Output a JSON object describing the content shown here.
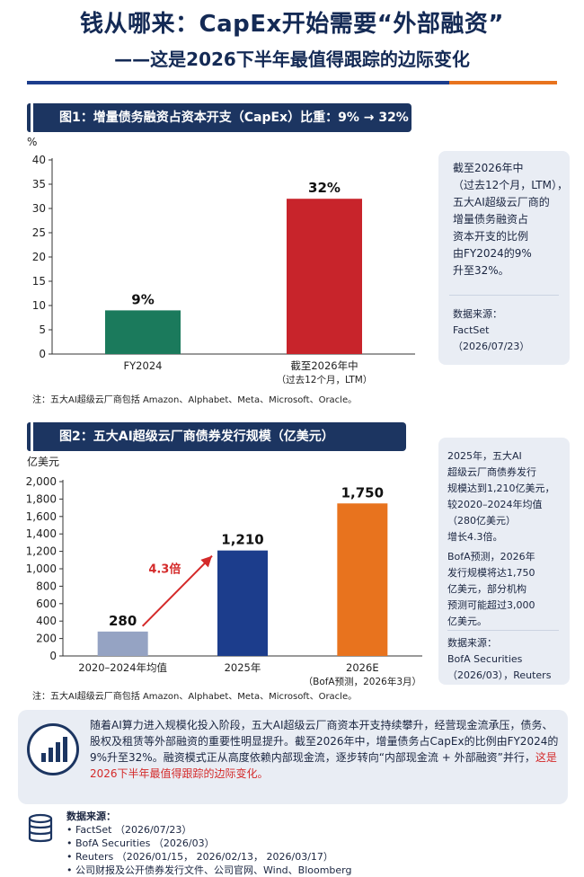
{
  "header": {
    "title": "钱从哪来：CapEx开始需要“外部融资”",
    "subtitle": "——这是2026下半年最值得跟踪的边际变化"
  },
  "figure1": {
    "banner": "图1：增量债务融资占资本开支（CapEx）比重：9% → 32%",
    "unit_label": "%",
    "yticks": [
      "0",
      "5",
      "10",
      "15",
      "20",
      "25",
      "30",
      "35",
      "40"
    ],
    "note": "注：五大AI超级云厂商包括 Amazon、Alphabet、Meta、Microsoft、Oracle。",
    "side_text": "截至2026年中\n（过去12个月，LTM），\n五大AI超级云厂商的\n增量债务融资占\n资本开支的比例\n由FY2024的9%\n升至32%。",
    "side_source": "数据来源：\nFactSet\n（2026/07/23）"
  },
  "figure2": {
    "banner": "图2：五大AI超级云厂商债券发行规模（亿美元）",
    "unit_label": "亿美元",
    "yticks": [
      "0",
      "200",
      "400",
      "600",
      "800",
      "1,000",
      "1,200",
      "1,400",
      "1,600",
      "1,800",
      "2,000"
    ],
    "growth_label": "4.3倍",
    "note": "注：五大AI超级云厂商包括 Amazon、Alphabet、Meta、Microsoft、Oracle。",
    "side_text_1": "2025年，五大AI\n超级云厂商债券发行\n规模达到1,210亿美元，\n较2020–2024年均值\n（280亿美元）\n增长4.3倍。",
    "side_text_2": "BofA预测，2026年\n发行规模将达1,750\n亿美元，部分机构\n预测可能超过3,000\n亿美元。",
    "side_source": "数据来源：\nBofA Securities\n（2026/03），Reuters"
  },
  "summary": {
    "text_main": "随着AI算力进入规模化投入阶段，五大AI超级云厂商资本开支持续攀升，经营现金流承压，债务、股权及租赁等外部融资的重要性明显提升。截至2026年中，增量债务占CapEx的比例由FY2024的9%升至32%。融资模式正从高度依赖内部现金流，逐步转向“内部现金流 + 外部融资”并行，",
    "text_highlight": "这是2026下半年最值得跟踪的边际变化。"
  },
  "sources": {
    "title": "数据来源：",
    "items": [
      "FactSet （2026/07/23）",
      "BofA Securities （2026/03）",
      "Reuters （2026/01/15， 2026/02/13， 2026/03/17）",
      "公司财报及公开债券发行文件、公司官网、Wind、Bloomberg"
    ]
  },
  "chart_data": [
    {
      "type": "bar",
      "title": "图1：增量债务融资占资本开支（CapEx）比重：9% → 32%",
      "ylabel": "%",
      "ylim": [
        0,
        40
      ],
      "grid": false,
      "categories": [
        "FY2024",
        "截至2026年中\n（过去12个月，LTM）"
      ],
      "values": [
        9,
        32
      ],
      "value_labels": [
        "9%",
        "32%"
      ],
      "colors": [
        "#1b7a5c",
        "#c8242b"
      ]
    },
    {
      "type": "bar",
      "title": "图2：五大AI超级云厂商债券发行规模（亿美元）",
      "ylabel": "亿美元",
      "ylim": [
        0,
        2000
      ],
      "grid": false,
      "categories": [
        "2020–2024年均值",
        "2025年",
        "2026E\n（BofA预测，2026年3月）"
      ],
      "values": [
        280,
        1210,
        1750
      ],
      "value_labels": [
        "280",
        "1,210",
        "1,750"
      ],
      "colors": [
        "#95a3c3",
        "#1c3d8c",
        "#e8731e"
      ],
      "annotation": "4.3倍"
    }
  ]
}
